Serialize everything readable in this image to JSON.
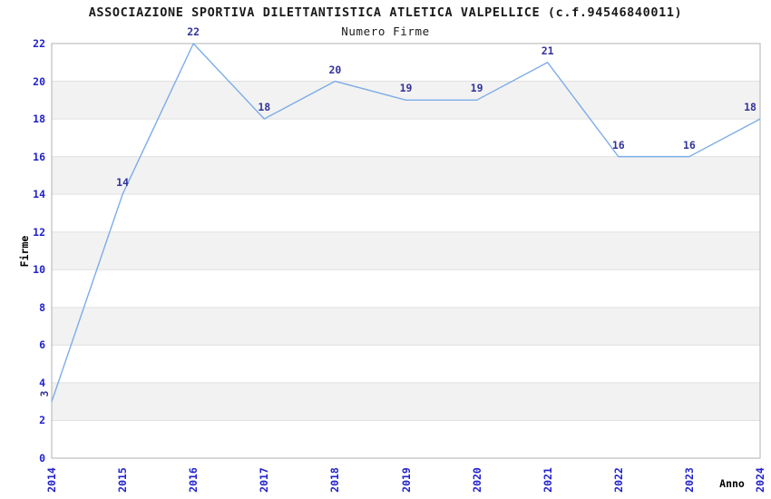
{
  "header": {
    "title": "ASSOCIAZIONE SPORTIVA DILETTANTISTICA ATLETICA VALPELLICE (c.f.94546840011)",
    "subtitle": "Numero Firme"
  },
  "chart_data": {
    "type": "line",
    "title": "Numero Firme",
    "xlabel": "Anno",
    "ylabel": "Firme",
    "categories": [
      "2014",
      "2015",
      "2016",
      "2017",
      "2018",
      "2019",
      "2020",
      "2021",
      "2022",
      "2023",
      "2024"
    ],
    "series": [
      {
        "name": "Numero Firme",
        "values": [
          3,
          14,
          22,
          18,
          20,
          19,
          19,
          21,
          16,
          16,
          18
        ]
      }
    ],
    "ylim": [
      0,
      22
    ],
    "ytick_step": 2,
    "grid": true,
    "legend": false,
    "band_ranges": [
      [
        2,
        4
      ],
      [
        6,
        8
      ],
      [
        10,
        12
      ],
      [
        14,
        16
      ],
      [
        18,
        20
      ]
    ],
    "colors": {
      "line": "#7cace8",
      "data_label": "#333399",
      "tick_label": "#2222cc",
      "band": "#f2f2f2",
      "gridline": "#e0e0e0",
      "border": "#b0b0b0",
      "text": "#000000"
    }
  }
}
